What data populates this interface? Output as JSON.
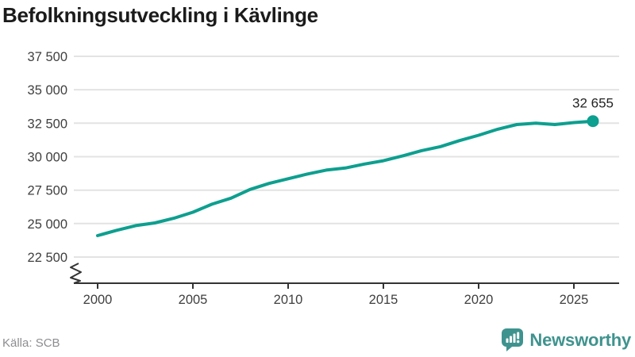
{
  "header": {
    "title": "Befolkningsutveckling i Kävlinge"
  },
  "chart_data": {
    "type": "line",
    "title": "Befolkningsutveckling i Kävlinge",
    "xlabel": "",
    "ylabel": "",
    "x": [
      2000,
      2001,
      2002,
      2003,
      2004,
      2005,
      2006,
      2007,
      2008,
      2009,
      2010,
      2011,
      2012,
      2013,
      2014,
      2015,
      2016,
      2017,
      2018,
      2019,
      2020,
      2021,
      2022,
      2023,
      2024,
      2025,
      2026
    ],
    "values": [
      24100,
      24500,
      24850,
      25050,
      25400,
      25850,
      26450,
      26900,
      27550,
      28000,
      28350,
      28700,
      29000,
      29150,
      29450,
      29700,
      30050,
      30450,
      30750,
      31200,
      31600,
      32050,
      32400,
      32500,
      32400,
      32550,
      32655
    ],
    "end_value": 32655,
    "end_label": "32 655",
    "ylim": [
      22500,
      37500
    ],
    "y_ticks": [
      {
        "value": 22500,
        "label": "22 500"
      },
      {
        "value": 25000,
        "label": "25 000"
      },
      {
        "value": 27500,
        "label": "27 500"
      },
      {
        "value": 30000,
        "label": "30 000"
      },
      {
        "value": 32500,
        "label": "32 500"
      },
      {
        "value": 35000,
        "label": "35 000"
      },
      {
        "value": 37500,
        "label": "37 500"
      }
    ],
    "x_ticks": [
      {
        "value": 2000,
        "label": "2000"
      },
      {
        "value": 2005,
        "label": "2005"
      },
      {
        "value": 2010,
        "label": "2010"
      },
      {
        "value": 2015,
        "label": "2015"
      },
      {
        "value": 2020,
        "label": "2020"
      },
      {
        "value": 2025,
        "label": "2025"
      }
    ],
    "grid": "horizontal",
    "legend": "none",
    "axis_break": true,
    "line_color": "#0d9f8f"
  },
  "footer": {
    "source": "Källa: SCB",
    "brand": "Newsworthy"
  },
  "colors": {
    "accent": "#0d9f8f",
    "grid": "#e3e3e3",
    "axis": "#333333",
    "tick_text": "#3f3f3f",
    "title_text": "#1b1b1b",
    "label_text": "#242424",
    "source_text": "#8d8d92",
    "brand_teal": "#3f938e",
    "background": "#ffffff"
  }
}
